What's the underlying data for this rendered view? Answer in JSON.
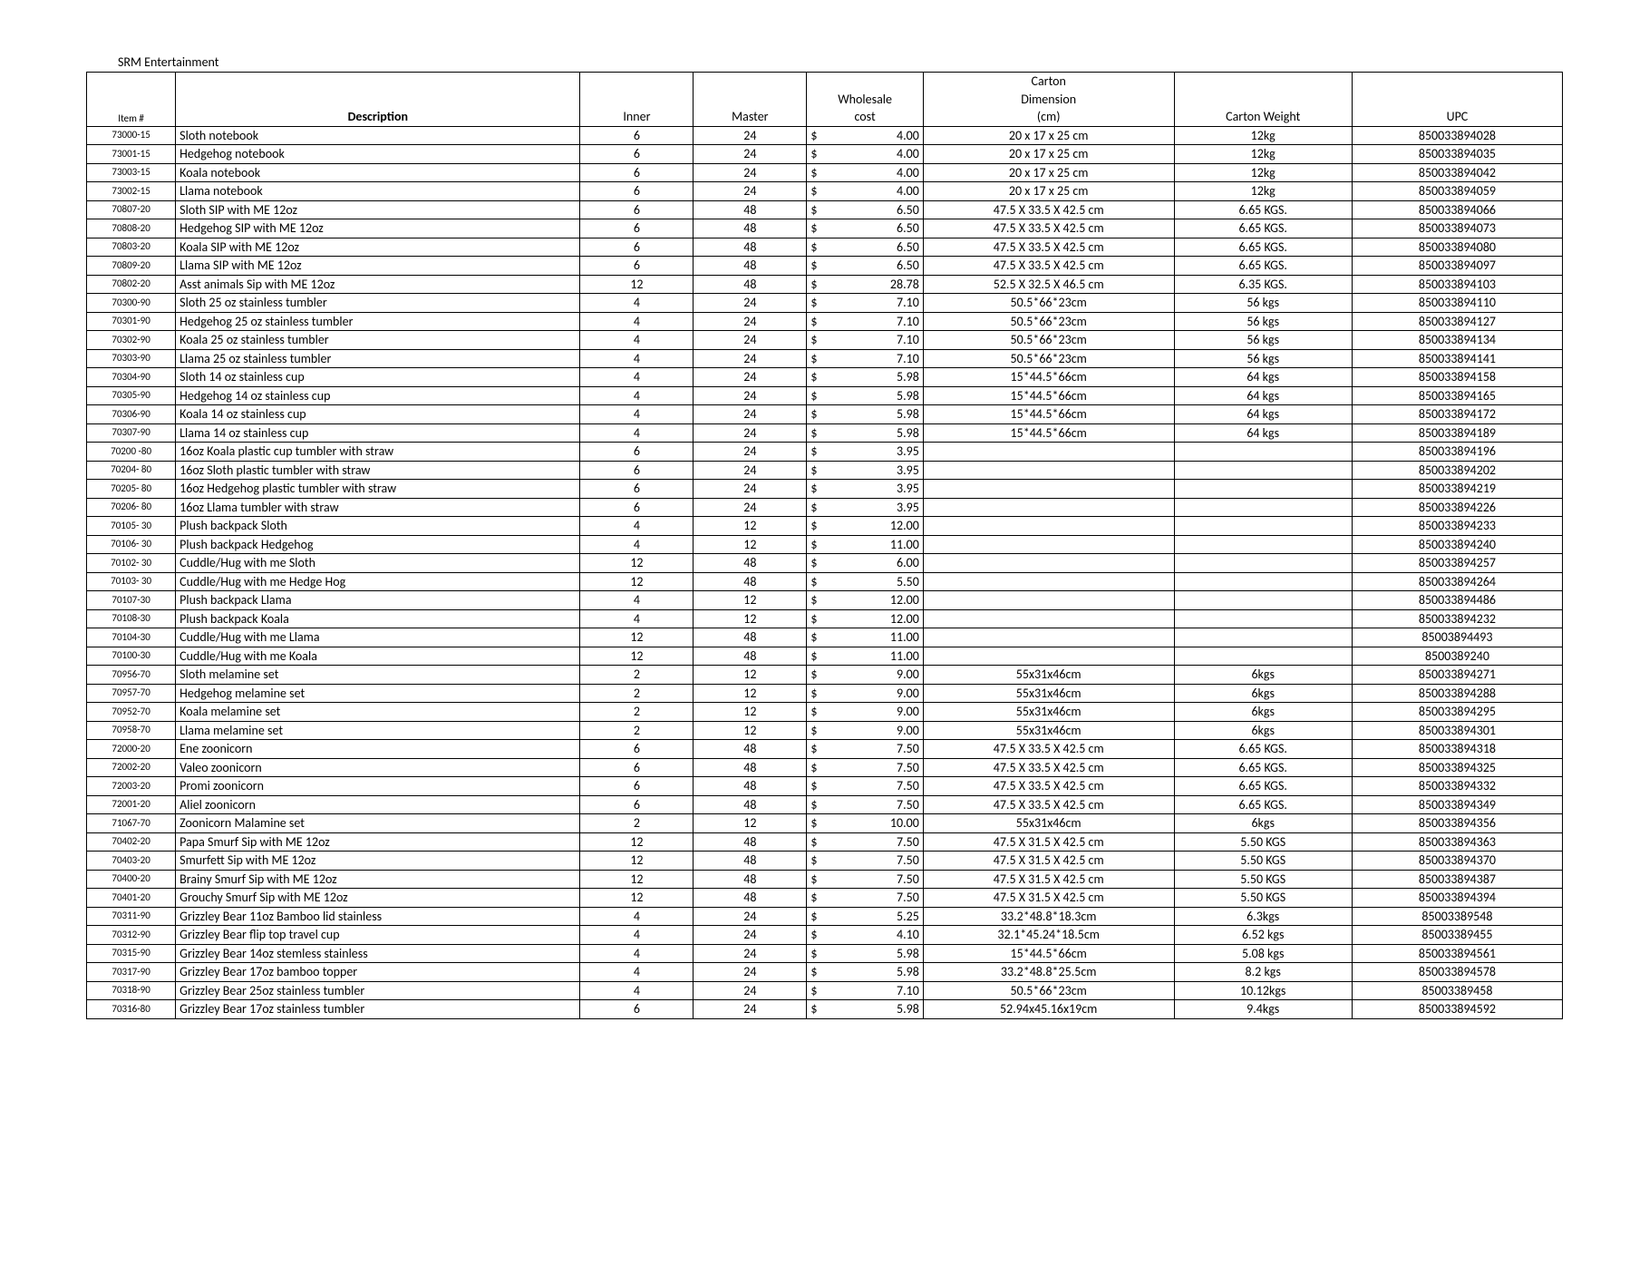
{
  "company": "SRM Entertainment",
  "headers": {
    "item": "Item #",
    "description": "Description",
    "inner": "Inner",
    "master": "Master",
    "wholesale": "Wholesale",
    "cost": "cost",
    "carton": "Carton",
    "dimension": "Dimension",
    "cm": "(cm)",
    "weight": "Carton Weight",
    "upc": "UPC"
  },
  "currency": "$",
  "table_style": {
    "border_color": "#000000",
    "background_color": "#ffffff",
    "header_font_weight_desc": "bold",
    "body_font_size_pt": 10,
    "item_font_size_pt": 8
  },
  "rows": [
    {
      "item": "73000-15",
      "desc": "Sloth notebook",
      "inner": "6",
      "master": "24",
      "cost": "4.00",
      "dim": "20 x 17 x 25 cm",
      "wgt": "12kg",
      "upc": "850033894028"
    },
    {
      "item": "73001-15",
      "desc": "Hedgehog notebook",
      "inner": "6",
      "master": "24",
      "cost": "4.00",
      "dim": "20 x 17 x 25 cm",
      "wgt": "12kg",
      "upc": "850033894035"
    },
    {
      "item": "73003-15",
      "desc": "Koala notebook",
      "inner": "6",
      "master": "24",
      "cost": "4.00",
      "dim": "20 x 17 x 25 cm",
      "wgt": "12kg",
      "upc": "850033894042"
    },
    {
      "item": "73002-15",
      "desc": "Llama notebook",
      "inner": "6",
      "master": "24",
      "cost": "4.00",
      "dim": "20 x 17 x 25 cm",
      "wgt": "12kg",
      "upc": "850033894059"
    },
    {
      "item": "70807-20",
      "desc": "Sloth SIP with ME 12oz",
      "inner": "6",
      "master": "48",
      "cost": "6.50",
      "dim": "47.5 X 33.5 X 42.5 cm",
      "wgt": "6.65 KGS.",
      "upc": "850033894066"
    },
    {
      "item": "70808-20",
      "desc": "Hedgehog SIP with ME 12oz",
      "inner": "6",
      "master": "48",
      "cost": "6.50",
      "dim": "47.5 X 33.5 X 42.5 cm",
      "wgt": "6.65 KGS.",
      "upc": "850033894073"
    },
    {
      "item": "70803-20",
      "desc": "Koala SIP with ME 12oz",
      "inner": "6",
      "master": "48",
      "cost": "6.50",
      "dim": "47.5 X 33.5 X 42.5 cm",
      "wgt": "6.65 KGS.",
      "upc": "850033894080"
    },
    {
      "item": "70809-20",
      "desc": "Llama SIP with ME 12oz",
      "inner": "6",
      "master": "48",
      "cost": "6.50",
      "dim": "47.5 X 33.5 X 42.5 cm",
      "wgt": "6.65 KGS.",
      "upc": "850033894097"
    },
    {
      "item": "70802-20",
      "desc": "Asst animals Sip with ME 12oz",
      "inner": "12",
      "master": "48",
      "cost": "28.78",
      "dim": "52.5 X 32.5 X 46.5 cm",
      "wgt": "6.35 KGS.",
      "upc": "850033894103"
    },
    {
      "item": "70300-90",
      "desc": "Sloth 25 oz stainless tumbler",
      "inner": "4",
      "master": "24",
      "cost": "7.10",
      "dim": "50.5*66*23cm",
      "wgt": "56 kgs",
      "upc": "850033894110"
    },
    {
      "item": "70301-90",
      "desc": "Hedgehog 25 oz stainless tumbler",
      "inner": "4",
      "master": "24",
      "cost": "7.10",
      "dim": "50.5*66*23cm",
      "wgt": "56 kgs",
      "upc": "850033894127"
    },
    {
      "item": "70302-90",
      "desc": "Koala 25 oz stainless tumbler",
      "inner": "4",
      "master": "24",
      "cost": "7.10",
      "dim": "50.5*66*23cm",
      "wgt": "56 kgs",
      "upc": "850033894134"
    },
    {
      "item": "70303-90",
      "desc": "Llama 25 oz stainless tumbler",
      "inner": "4",
      "master": "24",
      "cost": "7.10",
      "dim": "50.5*66*23cm",
      "wgt": "56 kgs",
      "upc": "850033894141"
    },
    {
      "item": "70304-90",
      "desc": "Sloth 14 oz stainless cup",
      "inner": "4",
      "master": "24",
      "cost": "5.98",
      "dim": "15*44.5*66cm",
      "wgt": "64 kgs",
      "upc": "850033894158"
    },
    {
      "item": "70305-90",
      "desc": "Hedgehog 14 oz stainless cup",
      "inner": "4",
      "master": "24",
      "cost": "5.98",
      "dim": "15*44.5*66cm",
      "wgt": "64 kgs",
      "upc": "850033894165"
    },
    {
      "item": "70306-90",
      "desc": "Koala 14 oz stainless cup",
      "inner": "4",
      "master": "24",
      "cost": "5.98",
      "dim": "15*44.5*66cm",
      "wgt": "64 kgs",
      "upc": "850033894172"
    },
    {
      "item": "70307-90",
      "desc": "Llama 14 oz stainless cup",
      "inner": "4",
      "master": "24",
      "cost": "5.98",
      "dim": "15*44.5*66cm",
      "wgt": "64 kgs",
      "upc": "850033894189"
    },
    {
      "item": "70200 -80",
      "desc": "16oz Koala plastic cup tumbler with straw",
      "inner": "6",
      "master": "24",
      "cost": "3.95",
      "dim": "",
      "wgt": "",
      "upc": "850033894196"
    },
    {
      "item": "70204- 80",
      "desc": "16oz Sloth plastic tumbler with straw",
      "inner": "6",
      "master": "24",
      "cost": "3.95",
      "dim": "",
      "wgt": "",
      "upc": "850033894202"
    },
    {
      "item": "70205- 80",
      "desc": "16oz Hedgehog plastic tumbler with straw",
      "inner": "6",
      "master": "24",
      "cost": "3.95",
      "dim": "",
      "wgt": "",
      "upc": "850033894219"
    },
    {
      "item": "70206- 80",
      "desc": "16oz Llama tumbler with straw",
      "inner": "6",
      "master": "24",
      "cost": "3.95",
      "dim": "",
      "wgt": "",
      "upc": "850033894226"
    },
    {
      "item": "70105- 30",
      "desc": "Plush backpack Sloth",
      "inner": "4",
      "master": "12",
      "cost": "12.00",
      "dim": "",
      "wgt": "",
      "upc": "850033894233"
    },
    {
      "item": "70106- 30",
      "desc": "Plush backpack Hedgehog",
      "inner": "4",
      "master": "12",
      "cost": "11.00",
      "dim": "",
      "wgt": "",
      "upc": "850033894240"
    },
    {
      "item": "70102- 30",
      "desc": "Cuddle/Hug with me Sloth",
      "inner": "12",
      "master": "48",
      "cost": "6.00",
      "dim": "",
      "wgt": "",
      "upc": "850033894257"
    },
    {
      "item": "70103- 30",
      "desc": "Cuddle/Hug with me Hedge Hog",
      "inner": "12",
      "master": "48",
      "cost": "5.50",
      "dim": "",
      "wgt": "",
      "upc": "850033894264"
    },
    {
      "item": "70107-30",
      "desc": "Plush backpack Llama",
      "inner": "4",
      "master": "12",
      "cost": "12.00",
      "dim": "",
      "wgt": "",
      "upc": "850033894486"
    },
    {
      "item": "70108-30",
      "desc": "Plush backpack Koala",
      "inner": "4",
      "master": "12",
      "cost": "12.00",
      "dim": "",
      "wgt": "",
      "upc": "850033894232"
    },
    {
      "item": "70104-30",
      "desc": "Cuddle/Hug with me Llama",
      "inner": "12",
      "master": "48",
      "cost": "11.00",
      "dim": "",
      "wgt": "",
      "upc": "85003894493"
    },
    {
      "item": "70100-30",
      "desc": "Cuddle/Hug with me Koala",
      "inner": "12",
      "master": "48",
      "cost": "11.00",
      "dim": "",
      "wgt": "",
      "upc": "8500389240"
    },
    {
      "item": "70956-70",
      "desc": "Sloth melamine set",
      "inner": "2",
      "master": "12",
      "cost": "9.00",
      "dim": "55x31x46cm",
      "wgt": "6kgs",
      "upc": "850033894271"
    },
    {
      "item": "70957-70",
      "desc": "Hedgehog melamine set",
      "inner": "2",
      "master": "12",
      "cost": "9.00",
      "dim": "55x31x46cm",
      "wgt": "6kgs",
      "upc": "850033894288"
    },
    {
      "item": "70952-70",
      "desc": "Koala melamine set",
      "inner": "2",
      "master": "12",
      "cost": "9.00",
      "dim": "55x31x46cm",
      "wgt": "6kgs",
      "upc": "850033894295"
    },
    {
      "item": "70958-70",
      "desc": "Llama melamine set",
      "inner": "2",
      "master": "12",
      "cost": "9.00",
      "dim": "55x31x46cm",
      "wgt": "6kgs",
      "upc": "850033894301"
    },
    {
      "item": "72000-20",
      "desc": "Ene zoonicorn",
      "inner": "6",
      "master": "48",
      "cost": "7.50",
      "dim": "47.5 X 33.5 X 42.5 cm",
      "wgt": "6.65 KGS.",
      "upc": "850033894318"
    },
    {
      "item": "72002-20",
      "desc": "Valeo  zoonicorn",
      "inner": "6",
      "master": "48",
      "cost": "7.50",
      "dim": "47.5 X 33.5 X 42.5 cm",
      "wgt": "6.65 KGS.",
      "upc": "850033894325"
    },
    {
      "item": "72003-20",
      "desc": "Promi zoonicorn",
      "inner": "6",
      "master": "48",
      "cost": "7.50",
      "dim": "47.5 X 33.5 X 42.5 cm",
      "wgt": "6.65 KGS.",
      "upc": "850033894332"
    },
    {
      "item": "72001-20",
      "desc": "Aliel  zoonicorn",
      "inner": "6",
      "master": "48",
      "cost": "7.50",
      "dim": "47.5 X 33.5 X 42.5 cm",
      "wgt": "6.65 KGS.",
      "upc": "850033894349"
    },
    {
      "item": "71067-70",
      "desc": "Zoonicorn Malamine set",
      "inner": "2",
      "master": "12",
      "cost": "10.00",
      "dim": "55x31x46cm",
      "wgt": "6kgs",
      "upc": "850033894356"
    },
    {
      "item": "70402-20",
      "desc": "Papa Smurf Sip with ME 12oz",
      "inner": "12",
      "master": "48",
      "cost": "7.50",
      "dim": "47.5 X 31.5 X 42.5 cm",
      "wgt": "5.50 KGS",
      "upc": "850033894363"
    },
    {
      "item": "70403-20",
      "desc": "Smurfett Sip with ME 12oz",
      "inner": "12",
      "master": "48",
      "cost": "7.50",
      "dim": "47.5 X 31.5 X 42.5 cm",
      "wgt": "5.50 KGS",
      "upc": "850033894370"
    },
    {
      "item": "70400-20",
      "desc": "Brainy Smurf Sip with ME 12oz",
      "inner": "12",
      "master": "48",
      "cost": "7.50",
      "dim": "47.5 X 31.5 X 42.5 cm",
      "wgt": "5.50 KGS",
      "upc": "850033894387"
    },
    {
      "item": "70401-20",
      "desc": "Grouchy Smurf Sip with ME 12oz",
      "inner": "12",
      "master": "48",
      "cost": "7.50",
      "dim": "47.5 X 31.5 X 42.5 cm",
      "wgt": "5.50 KGS",
      "upc": "850033894394"
    },
    {
      "item": "70311-90",
      "desc": "Grizzley Bear 11oz Bamboo lid stainless",
      "inner": "4",
      "master": "24",
      "cost": "5.25",
      "dim": "33.2*48.8*18.3cm",
      "wgt": "6.3kgs",
      "upc": "85003389548"
    },
    {
      "item": "70312-90",
      "desc": "Grizzley Bear flip top travel cup",
      "inner": "4",
      "master": "24",
      "cost": "4.10",
      "dim": "32.1*45.24*18.5cm",
      "wgt": "6.52 kgs",
      "upc": "85003389455"
    },
    {
      "item": "70315-90",
      "desc": "Grizzley Bear 14oz stemless stainless",
      "inner": "4",
      "master": "24",
      "cost": "5.98",
      "dim": "15*44.5*66cm",
      "wgt": "5.08 kgs",
      "upc": "850033894561"
    },
    {
      "item": "70317-90",
      "desc": "Grizzley Bear 17oz bamboo topper",
      "inner": "4",
      "master": "24",
      "cost": "5.98",
      "dim": "33.2*48.8*25.5cm",
      "wgt": "8.2 kgs",
      "upc": "850033894578"
    },
    {
      "item": "70318-90",
      "desc": "Grizzley Bear 25oz stainless tumbler",
      "inner": "4",
      "master": "24",
      "cost": "7.10",
      "dim": "50.5*66*23cm",
      "wgt": "10.12kgs",
      "upc": "85003389458"
    },
    {
      "item": "70316-80",
      "desc": "Grizzley Bear 17oz stainless tumbler",
      "inner": "6",
      "master": "24",
      "cost": "5.98",
      "dim": "52.94x45.16x19cm",
      "wgt": "9.4kgs",
      "upc": "850033894592"
    }
  ]
}
